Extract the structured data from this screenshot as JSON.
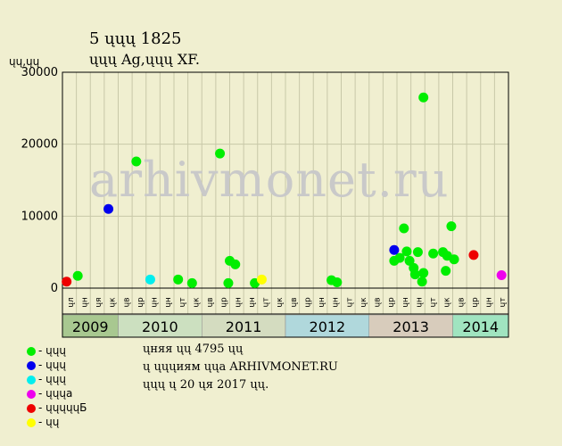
{
  "header": {
    "title": "5 ųųų 1825",
    "subtitle": "ųųų Ag,ųųų XF."
  },
  "watermark": "arhivmonet.ru",
  "chart_data": {
    "type": "scatter",
    "ylabel": "ųų,ųų",
    "ylim": [
      0,
      30000
    ],
    "y_ticks": [
      0,
      10000,
      20000,
      30000
    ],
    "months": [
      "ųл",
      "ųн",
      "ųя",
      "ųк",
      "ųв",
      "ųр",
      "ųн",
      "ųн",
      "ųт",
      "ųк",
      "ųв",
      "ųр",
      "ųн",
      "ųн",
      "ųт",
      "ųк",
      "ųв",
      "ųр",
      "ųн",
      "ųн",
      "ųт",
      "ųк",
      "ųв",
      "ųр",
      "ųн",
      "ųн",
      "ųт",
      "ųк",
      "ųв",
      "ųр",
      "ųн",
      "ųт"
    ],
    "years": [
      {
        "label": "2009",
        "start": 0,
        "end": 4,
        "color": "#a8c890"
      },
      {
        "label": "2010",
        "start": 4,
        "end": 10,
        "color": "#cce0c0"
      },
      {
        "label": "2011",
        "start": 10,
        "end": 16,
        "color": "#d4dcc0"
      },
      {
        "label": "2012",
        "start": 16,
        "end": 22,
        "color": "#b0d8dc"
      },
      {
        "label": "2013",
        "start": 22,
        "end": 28,
        "color": "#d8ccbc"
      },
      {
        "label": "2014",
        "start": 28,
        "end": 32,
        "color": "#a0e4c0"
      }
    ],
    "series": [
      {
        "color": "#00ee00",
        "points": [
          [
            1.1,
            1700
          ],
          [
            5.3,
            17600
          ],
          [
            8.3,
            1200
          ],
          [
            9.3,
            700
          ],
          [
            11.3,
            18700
          ],
          [
            11.9,
            700
          ],
          [
            12.0,
            3800
          ],
          [
            12.4,
            3300
          ],
          [
            13.8,
            700
          ],
          [
            19.3,
            1100
          ],
          [
            19.7,
            800
          ],
          [
            23.8,
            3800
          ],
          [
            24.2,
            4200
          ],
          [
            24.5,
            8300
          ],
          [
            24.7,
            5100
          ],
          [
            24.9,
            3800
          ],
          [
            25.2,
            2800
          ],
          [
            25.3,
            1900
          ],
          [
            25.5,
            5000
          ],
          [
            25.8,
            900
          ],
          [
            25.9,
            2100
          ],
          [
            25.9,
            26500
          ],
          [
            26.6,
            4800
          ],
          [
            27.3,
            5000
          ],
          [
            27.5,
            2400
          ],
          [
            27.6,
            4500
          ],
          [
            27.9,
            8600
          ],
          [
            28.1,
            4000
          ]
        ]
      },
      {
        "color": "#0000ee",
        "points": [
          [
            3.3,
            11000
          ],
          [
            23.8,
            5300
          ]
        ]
      },
      {
        "color": "#00eeee",
        "points": [
          [
            6.3,
            1200
          ]
        ]
      },
      {
        "color": "#ee00ee",
        "points": [
          [
            31.5,
            1800
          ]
        ]
      },
      {
        "color": "#ee0000",
        "points": [
          [
            0.3,
            900
          ],
          [
            29.5,
            4600
          ]
        ]
      },
      {
        "color": "#ffff00",
        "points": [
          [
            14.3,
            1200
          ]
        ]
      }
    ]
  },
  "legend": [
    {
      "label": "- ųųų",
      "color": "#00ee00"
    },
    {
      "label": "- ųųų",
      "color": "#0000ee"
    },
    {
      "label": "- ųųų",
      "color": "#00eeee"
    },
    {
      "label": "- ųųųа",
      "color": "#ee00ee"
    },
    {
      "label": "- ųųųųųБ",
      "color": "#ee0000"
    },
    {
      "label": "- ųų",
      "color": "#ffff00"
    }
  ],
  "notes": {
    "line1": "ųняя ųų 4795 ųų",
    "line2": "ų ųųųиям ųųа ARHIVMONET.RU",
    "line3": "ųųų ų 20 ųя 2017 ųų."
  }
}
